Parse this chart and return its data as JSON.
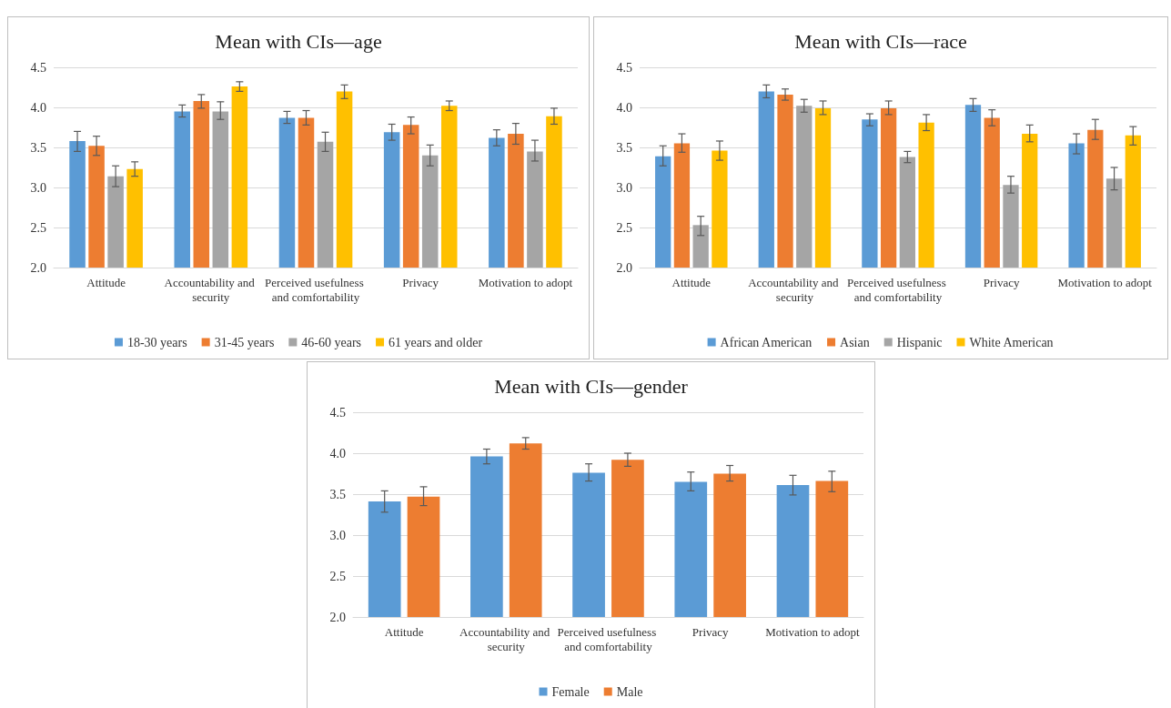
{
  "chart_data": [
    {
      "type": "bar",
      "title": "Mean with CIs—age",
      "categories": [
        "Attitude",
        "Accountability and security",
        "Perceived usefulness and comfortability",
        "Privacy",
        "Motivation to adopt"
      ],
      "ylim": [
        2.0,
        4.5
      ],
      "yticks": [
        {
          "value": 2.0,
          "label": "2.0"
        },
        {
          "value": 2.5,
          "label": "2.5"
        },
        {
          "value": 3.0,
          "label": "3.0"
        },
        {
          "value": 3.5,
          "label": "3.5"
        },
        {
          "value": 4.0,
          "label": "4.0"
        },
        {
          "value": 4.5,
          "label": "4.5"
        }
      ],
      "grid": "y",
      "legend": "bottom",
      "series": [
        {
          "name": "18-30 years",
          "color": "#5b9bd5",
          "values": [
            3.58,
            3.95,
            3.87,
            3.69,
            3.62
          ],
          "errors": [
            [
              3.45,
              3.7
            ],
            [
              3.88,
              4.03
            ],
            [
              3.8,
              3.95
            ],
            [
              3.59,
              3.79
            ],
            [
              3.52,
              3.72
            ]
          ]
        },
        {
          "name": "31-45 years",
          "color": "#ed7d31",
          "values": [
            3.52,
            4.08,
            3.87,
            3.78,
            3.67
          ],
          "errors": [
            [
              3.4,
              3.64
            ],
            [
              3.99,
              4.16
            ],
            [
              3.78,
              3.96
            ],
            [
              3.67,
              3.88
            ],
            [
              3.54,
              3.8
            ]
          ]
        },
        {
          "name": "46-60 years",
          "color": "#a5a5a5",
          "values": [
            3.14,
            3.95,
            3.57,
            3.4,
            3.45
          ],
          "errors": [
            [
              3.01,
              3.27
            ],
            [
              3.85,
              4.07
            ],
            [
              3.45,
              3.69
            ],
            [
              3.27,
              3.53
            ],
            [
              3.33,
              3.59
            ]
          ]
        },
        {
          "name": "61 years and older",
          "color": "#ffc000",
          "values": [
            3.23,
            4.26,
            4.2,
            4.02,
            3.89
          ],
          "errors": [
            [
              3.14,
              3.32
            ],
            [
              4.2,
              4.32
            ],
            [
              4.11,
              4.28
            ],
            [
              3.96,
              4.08
            ],
            [
              3.79,
              3.99
            ]
          ]
        }
      ]
    },
    {
      "type": "bar",
      "title": "Mean with CIs—race",
      "categories": [
        "Attitude",
        "Accountability and security",
        "Perceived usefulness and comfortability",
        "Privacy",
        "Motivation to adopt"
      ],
      "ylim": [
        2.0,
        4.5
      ],
      "yticks": [
        {
          "value": 2.0,
          "label": "2.0"
        },
        {
          "value": 2.5,
          "label": "2.5"
        },
        {
          "value": 3.0,
          "label": "3.0"
        },
        {
          "value": 3.5,
          "label": "3.5"
        },
        {
          "value": 4.0,
          "label": "4.0"
        },
        {
          "value": 4.5,
          "label": "4.5"
        }
      ],
      "grid": "y",
      "legend": "bottom",
      "series": [
        {
          "name": "African American",
          "color": "#5b9bd5",
          "values": [
            3.39,
            4.2,
            3.85,
            4.03,
            3.55
          ],
          "errors": [
            [
              3.27,
              3.52
            ],
            [
              4.12,
              4.28
            ],
            [
              3.77,
              3.92
            ],
            [
              3.95,
              4.11
            ],
            [
              3.42,
              3.67
            ]
          ]
        },
        {
          "name": "Asian",
          "color": "#ed7d31",
          "values": [
            3.55,
            4.16,
            3.99,
            3.87,
            3.72
          ],
          "errors": [
            [
              3.44,
              3.67
            ],
            [
              4.09,
              4.23
            ],
            [
              3.91,
              4.08
            ],
            [
              3.77,
              3.97
            ],
            [
              3.6,
              3.85
            ]
          ]
        },
        {
          "name": "Hispanic",
          "color": "#a5a5a5",
          "values": [
            2.53,
            4.02,
            3.38,
            3.03,
            3.11
          ],
          "errors": [
            [
              2.4,
              2.64
            ],
            [
              3.94,
              4.1
            ],
            [
              3.31,
              3.45
            ],
            [
              2.93,
              3.14
            ],
            [
              2.97,
              3.25
            ]
          ]
        },
        {
          "name": "White American",
          "color": "#ffc000",
          "values": [
            3.46,
            3.99,
            3.81,
            3.67,
            3.65
          ],
          "errors": [
            [
              3.34,
              3.58
            ],
            [
              3.91,
              4.08
            ],
            [
              3.71,
              3.91
            ],
            [
              3.57,
              3.78
            ],
            [
              3.53,
              3.76
            ]
          ]
        }
      ]
    },
    {
      "type": "bar",
      "title": "Mean with CIs—gender",
      "categories": [
        "Attitude",
        "Accountability and security",
        "Perceived usefulness and comfortability",
        "Privacy",
        "Motivation to adopt"
      ],
      "ylim": [
        2.0,
        4.5
      ],
      "yticks": [
        {
          "value": 2.0,
          "label": "2.0"
        },
        {
          "value": 2.5,
          "label": "2.5"
        },
        {
          "value": 3.0,
          "label": "3.0"
        },
        {
          "value": 3.5,
          "label": "3.5"
        },
        {
          "value": 4.0,
          "label": "4.0"
        },
        {
          "value": 4.5,
          "label": "4.5"
        }
      ],
      "grid": "y",
      "legend": "bottom",
      "series": [
        {
          "name": "Female",
          "color": "#5b9bd5",
          "values": [
            3.41,
            3.96,
            3.76,
            3.65,
            3.61
          ],
          "errors": [
            [
              3.28,
              3.54
            ],
            [
              3.87,
              4.05
            ],
            [
              3.66,
              3.87
            ],
            [
              3.54,
              3.77
            ],
            [
              3.49,
              3.73
            ]
          ]
        },
        {
          "name": "Male",
          "color": "#ed7d31",
          "values": [
            3.47,
            4.12,
            3.92,
            3.75,
            3.66
          ],
          "errors": [
            [
              3.36,
              3.59
            ],
            [
              4.05,
              4.19
            ],
            [
              3.84,
              4.0
            ],
            [
              3.66,
              3.85
            ],
            [
              3.53,
              3.78
            ]
          ]
        }
      ]
    }
  ]
}
